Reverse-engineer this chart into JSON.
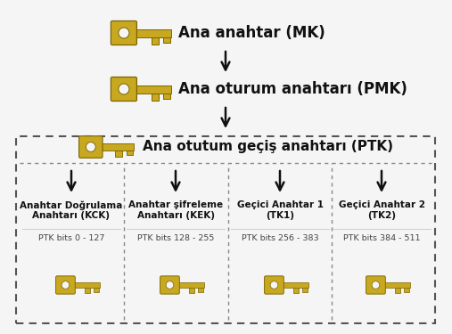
{
  "fig_bg": "#f5f5f5",
  "title_mk": "Ana anahtar (MK)",
  "title_pmk": "Ana oturum anahtarı (PMK)",
  "title_ptk": "Ana otutum geçiş anahtarı (PTK)",
  "box_labels": [
    "Anahtar Doğrulama\nAnahtarı (KCK)",
    "Anahtar şifreleme\nAnahtarı (KEK)",
    "Geçici Anahtar 1\n(TK1)",
    "Geçici Anahtar 2\n(TK2)"
  ],
  "box_bits": [
    "PTK bits 0 - 127",
    "PTK bits 128 - 255",
    "PTK bits 256 - 383",
    "PTK bits 384 - 511"
  ],
  "key_color": "#c8a820",
  "key_outline": "#7a6500",
  "key_fill_dark": "#a07c00",
  "arrow_color": "#111111",
  "text_color": "#111111",
  "bits_text_color": "#444444",
  "dashed_box_color": "#555555",
  "inner_divider_color": "#888888"
}
